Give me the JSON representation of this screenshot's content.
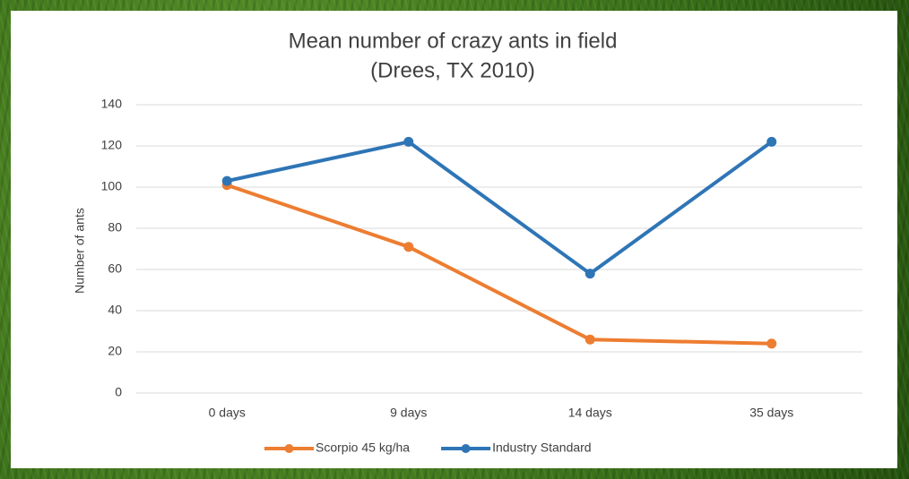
{
  "chart_data": {
    "type": "line",
    "title": "Mean number of crazy ants in field",
    "subtitle": "(Drees, TX 2010)",
    "y_label": "Number of ants",
    "categories": [
      "0 days",
      "9 days",
      "14 days",
      "35 days"
    ],
    "series": [
      {
        "name": "Scorpio 45 kg/ha",
        "color": "#ed7d31",
        "values": [
          101,
          71,
          26,
          24
        ]
      },
      {
        "name": "Industry Standard",
        "color": "#2e75b6",
        "values": [
          103,
          122,
          58,
          122
        ]
      }
    ],
    "ylim": [
      0,
      140
    ],
    "yticks": [
      0,
      20,
      40,
      60,
      80,
      100,
      120,
      140
    ],
    "grid": true,
    "legend": "bottom"
  }
}
